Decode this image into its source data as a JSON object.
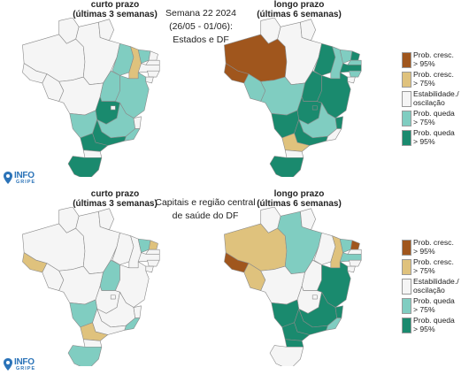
{
  "week_title": [
    "Semana 22 2024",
    "(26/05 - 01/06):",
    "Estados e DF"
  ],
  "capitals_title": [
    "Capitais e região central",
    "de saúde do DF"
  ],
  "panels": {
    "short_label": [
      "curto prazo",
      "(últimas 3 semanas)"
    ],
    "long_label": [
      "longo prazo",
      "(últimas 6 semanas)"
    ]
  },
  "legend": [
    {
      "label": "Prob. cresc.\n> 95%",
      "color": "#a0561d"
    },
    {
      "label": "Prob. cresc.\n> 75%",
      "color": "#dfc27d"
    },
    {
      "label": "Estabilidade./\noscilação",
      "color": "#f5f5f5"
    },
    {
      "label": "Prob. queda\n> 75%",
      "color": "#80cdc1"
    },
    {
      "label": "Prob. queda\n> 95%",
      "color": "#1a8a6e"
    }
  ],
  "logo": {
    "name": "INFO",
    "sub": "GRIPE",
    "color": "#2b73b8",
    "icon": "location-pin-icon"
  },
  "category_colors": {
    "inc95": "#a0561d",
    "inc75": "#dfc27d",
    "stable": "#f5f5f5",
    "dec75": "#80cdc1",
    "dec95": "#1a8a6e"
  },
  "maps": [
    {
      "id": "states-short",
      "regions": {
        "AM": "stable",
        "PA": "stable",
        "RR": "stable",
        "AP": "stable",
        "AC": "stable",
        "RO": "stable",
        "MT": "stable",
        "TO": "dec75",
        "MA": "dec75",
        "PI": "inc75",
        "CE": "dec75",
        "RN": "stable",
        "PB": "stable",
        "PE": "stable",
        "AL": "stable",
        "SE": "stable",
        "BA": "dec75",
        "MS": "dec75",
        "GO": "dec95",
        "DF": "stable",
        "MG": "dec75",
        "SP": "dec95",
        "RJ": "dec75",
        "ES": "stable",
        "PR": "dec95",
        "SC": "stable",
        "RS": "dec95"
      }
    },
    {
      "id": "states-long",
      "regions": {
        "AM": "inc95",
        "PA": "stable",
        "RR": "stable",
        "AP": "stable",
        "AC": "inc95",
        "RO": "dec75",
        "MT": "dec75",
        "TO": "dec95",
        "MA": "dec95",
        "PI": "dec75",
        "CE": "dec75",
        "RN": "dec95",
        "PB": "dec75",
        "PE": "dec95",
        "AL": "dec75",
        "SE": "stable",
        "BA": "dec95",
        "MS": "dec95",
        "GO": "dec95",
        "DF": "dec95",
        "MG": "dec75",
        "SP": "dec95",
        "RJ": "stable",
        "ES": "dec95",
        "PR": "inc75",
        "SC": "stable",
        "RS": "dec95"
      }
    },
    {
      "id": "capitals-short",
      "regions": {
        "AM": "stable",
        "PA": "stable",
        "RR": "stable",
        "AP": "stable",
        "AC": "inc75",
        "RO": "stable",
        "MT": "stable",
        "TO": "dec75",
        "MA": "stable",
        "PI": "stable",
        "CE": "dec75",
        "RN": "inc75",
        "PB": "stable",
        "PE": "stable",
        "AL": "stable",
        "SE": "stable",
        "BA": "stable",
        "MS": "dec75",
        "GO": "stable",
        "DF": "stable",
        "MG": "stable",
        "SP": "stable",
        "RJ": "dec75",
        "ES": "stable",
        "PR": "inc75",
        "SC": "stable",
        "RS": "dec75"
      }
    },
    {
      "id": "capitals-long",
      "regions": {
        "AM": "inc75",
        "PA": "dec75",
        "RR": "stable",
        "AP": "stable",
        "AC": "inc95",
        "RO": "inc75",
        "MT": "stable",
        "TO": "stable",
        "MA": "stable",
        "PI": "inc75",
        "CE": "dec75",
        "RN": "inc95",
        "PB": "stable",
        "PE": "dec75",
        "AL": "stable",
        "SE": "stable",
        "BA": "dec95",
        "MS": "dec95",
        "GO": "stable",
        "DF": "stable",
        "MG": "dec95",
        "SP": "dec95",
        "RJ": "dec75",
        "ES": "dec95",
        "PR": "dec95",
        "SC": "dec95",
        "RS": "stable"
      }
    }
  ]
}
